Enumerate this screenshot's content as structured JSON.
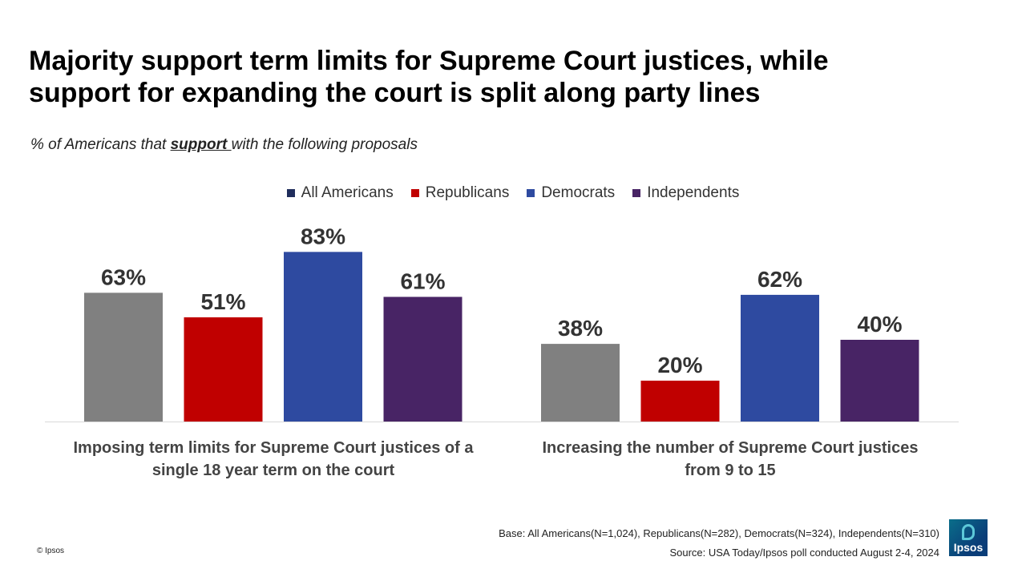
{
  "title_lines": [
    "Majority support term limits for Supreme Court justices, while",
    "support for expanding the court is split along party lines"
  ],
  "subtitle": {
    "before": "% of Americans that ",
    "emphasis": "support ",
    "after": "with the following proposals"
  },
  "colors": {
    "All Americans": "#808080",
    "Republicans": "#c00000",
    "Democrats": "#2e4aa0",
    "Independents": "#482465",
    "legend_all_americans": "#1f2d5c",
    "axis": "#d9d9d9",
    "value_label": "#333333"
  },
  "chart_data": {
    "type": "bar",
    "categories": [
      "Imposing term limits for Supreme Court justices of a single 18 year term on the court",
      "Increasing the number of Supreme Court justices from 9 to 15"
    ],
    "category_label_lines": [
      [
        "Imposing term limits for Supreme Court justices of a",
        "single 18 year term on the court"
      ],
      [
        "Increasing the number of Supreme Court justices",
        "from 9 to 15"
      ]
    ],
    "series": [
      {
        "name": "All Americans",
        "values": [
          63,
          38
        ],
        "labels": [
          "63%",
          "38%"
        ]
      },
      {
        "name": "Republicans",
        "values": [
          51,
          20
        ],
        "labels": [
          "51%",
          "20%"
        ]
      },
      {
        "name": "Democrats",
        "values": [
          83,
          62
        ],
        "labels": [
          "83%",
          "62%"
        ]
      },
      {
        "name": "Independents",
        "values": [
          61,
          40
        ],
        "labels": [
          "61%",
          "40%"
        ]
      }
    ],
    "ylim": [
      0,
      100
    ],
    "grid": false,
    "legend_position": "top-center"
  },
  "footer": {
    "base": "Base: All Americans(N=1,024), Republicans(N=282), Democrats(N=324), Independents(N=310)",
    "source": "Source: USA Today/Ipsos poll conducted August 2-4, 2024",
    "copyright": "© Ipsos",
    "logo_text": "Ipsos"
  }
}
